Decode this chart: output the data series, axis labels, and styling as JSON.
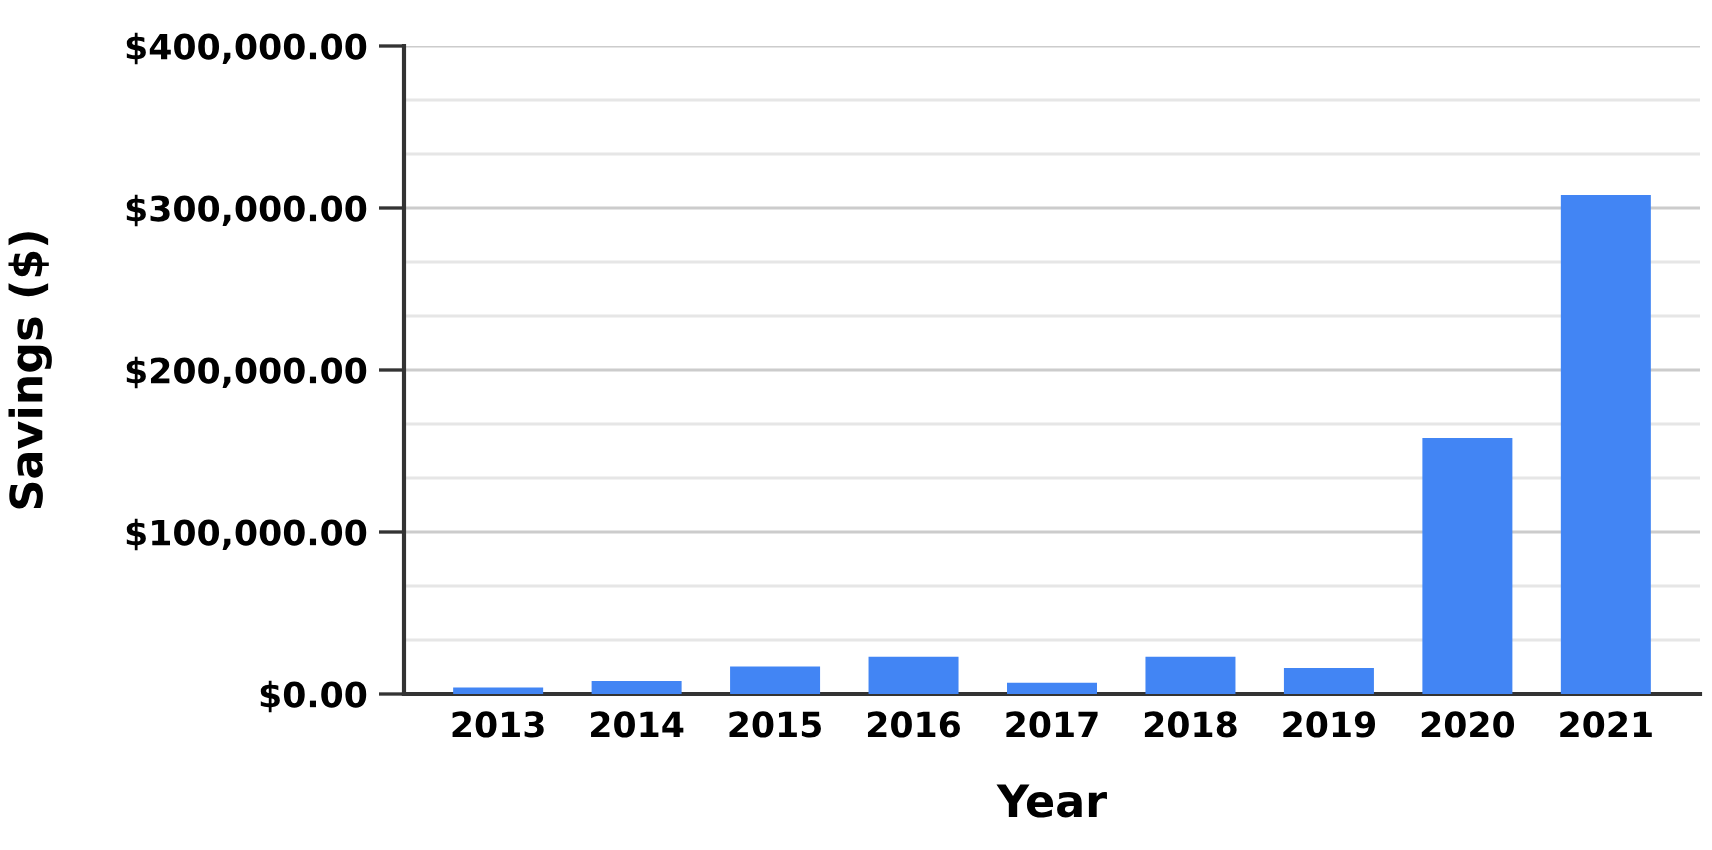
{
  "chart_data": {
    "type": "bar",
    "xlabel": "Year",
    "ylabel": "Savings ($)",
    "categories": [
      "2013",
      "2014",
      "2015",
      "2016",
      "2017",
      "2018",
      "2019",
      "2020",
      "2021"
    ],
    "values": [
      4000,
      8000,
      17000,
      23000,
      7000,
      23000,
      16000,
      158000,
      308000
    ],
    "color": "#4285f4",
    "ylim": [
      0,
      400000
    ],
    "yticks": [
      {
        "value": 0,
        "label": "$0.00"
      },
      {
        "value": 100000,
        "label": "$100,000.00"
      },
      {
        "value": 200000,
        "label": "$200,000.00"
      },
      {
        "value": 300000,
        "label": "$300,000.00"
      },
      {
        "value": 400000,
        "label": "$400,000.00"
      }
    ],
    "grid": "y",
    "legend": false
  }
}
